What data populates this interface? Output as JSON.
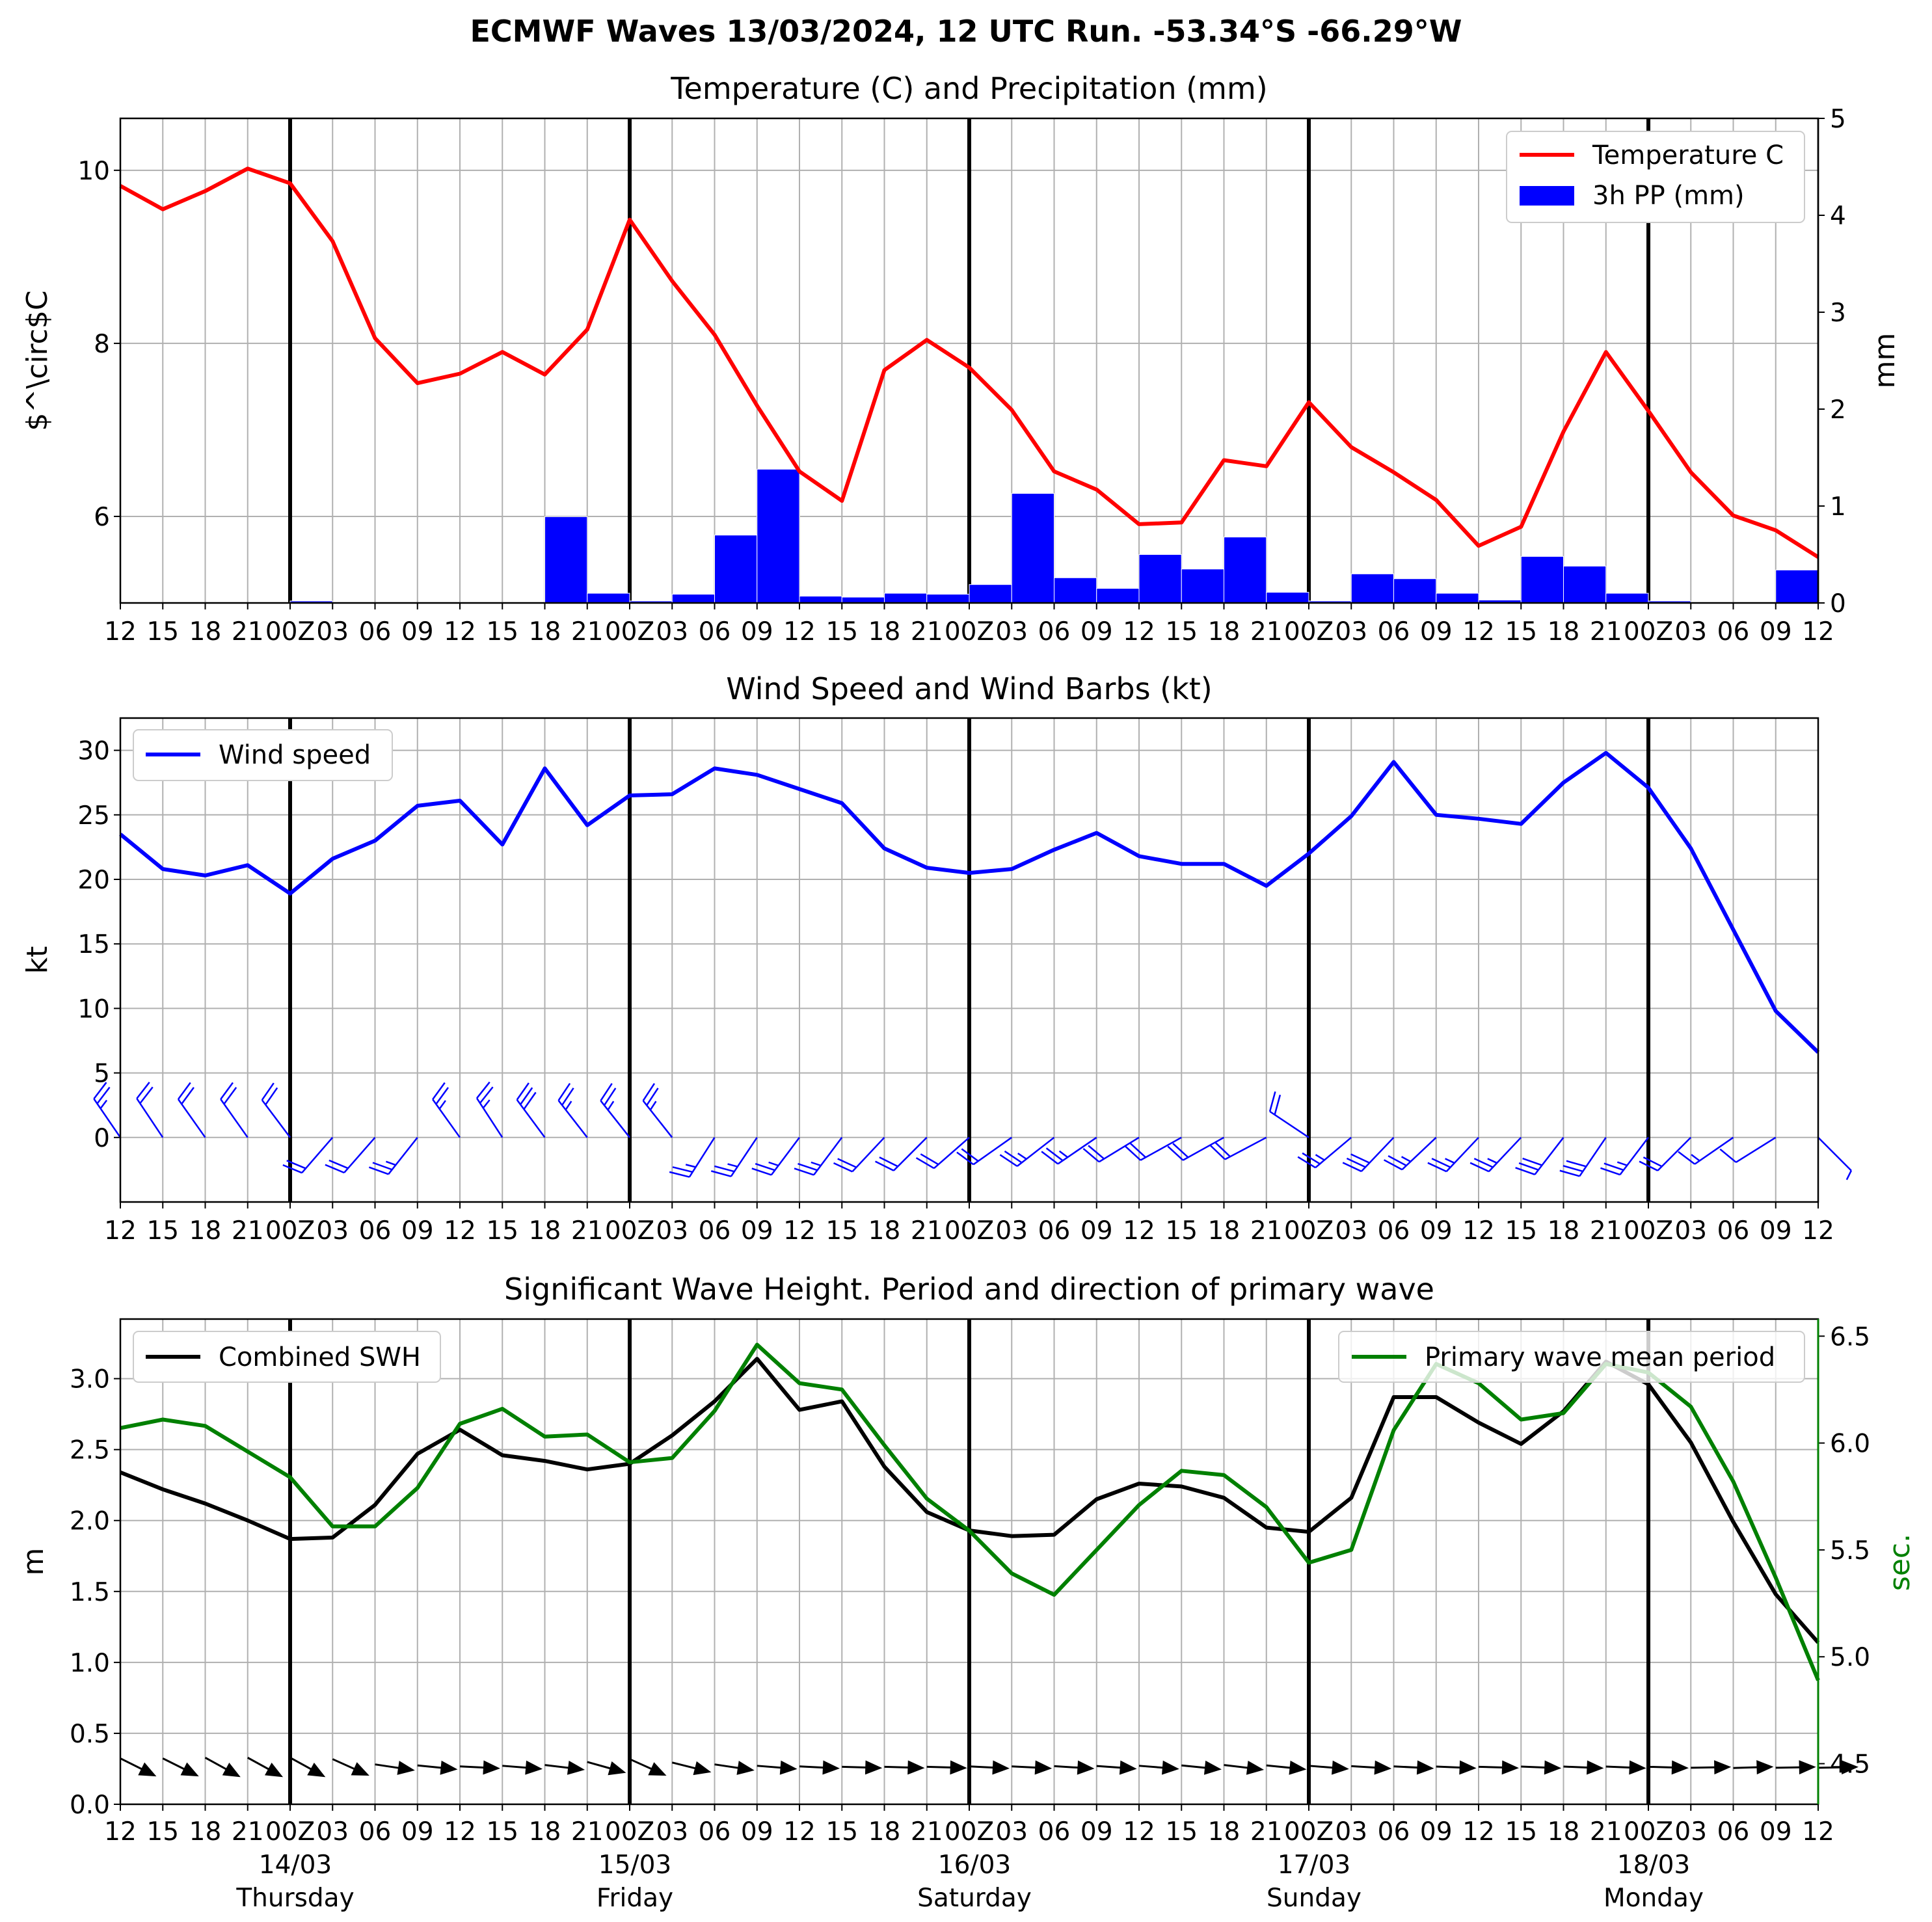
{
  "figure_title": "ECMWF Waves 13/03/2024, 12 UTC Run. -53.34°S -66.29°W",
  "x_tick_labels": [
    "12",
    "15",
    "18",
    "21",
    "00Z",
    "03",
    "06",
    "09",
    "12",
    "15",
    "18",
    "21",
    "00Z",
    "03",
    "06",
    "09",
    "12",
    "15",
    "18",
    "21",
    "00Z",
    "03",
    "06",
    "09",
    "12",
    "15",
    "18",
    "21",
    "00Z",
    "03",
    "06",
    "09",
    "12",
    "15",
    "18",
    "21",
    "00Z",
    "03",
    "06",
    "09",
    "12"
  ],
  "day_labels": [
    {
      "date": "14/03",
      "weekday": "Thursday"
    },
    {
      "date": "15/03",
      "weekday": "Friday"
    },
    {
      "date": "16/03",
      "weekday": "Saturday"
    },
    {
      "date": "17/03",
      "weekday": "Sunday"
    },
    {
      "date": "18/03",
      "weekday": "Monday"
    }
  ],
  "colors": {
    "temperature": "#ff0000",
    "precipitation": "#0000ff",
    "wind": "#0000ff",
    "swh": "#000000",
    "period": "#008000"
  },
  "chart_data": [
    {
      "type": "line",
      "title": "Temperature (C) and Precipitation (mm)",
      "ylabel": "$^\\circ$C",
      "ylabel_right": "mm",
      "ylim": [
        5.0,
        10.6
      ],
      "ylim_right": [
        0,
        5
      ],
      "yticks": [
        6,
        8,
        10
      ],
      "yticks_right": [
        0,
        1,
        2,
        3,
        4,
        5
      ],
      "grid": true,
      "legend_placement": "top-right",
      "series": [
        {
          "name": "Temperature C",
          "kind": "line",
          "axis": "left",
          "values": [
            9.82,
            9.55,
            9.76,
            10.02,
            9.85,
            9.18,
            8.06,
            7.54,
            7.65,
            7.9,
            7.64,
            8.16,
            9.43,
            8.72,
            8.1,
            7.28,
            6.52,
            6.18,
            7.69,
            8.04,
            7.72,
            7.23,
            6.52,
            6.31,
            5.91,
            5.93,
            6.65,
            6.58,
            7.32,
            6.8,
            6.51,
            6.19,
            5.66,
            5.88,
            6.98,
            7.9,
            7.22,
            6.51,
            6.01,
            5.84,
            5.53
          ]
        },
        {
          "name": "3h PP (mm)",
          "kind": "bar",
          "axis": "right",
          "values": [
            0,
            0,
            0,
            0,
            0,
            0.02,
            0,
            0,
            0,
            0,
            0,
            0.89,
            0.1,
            0.02,
            0.09,
            0.7,
            1.38,
            0.07,
            0.06,
            0.1,
            0.09,
            0.19,
            1.13,
            0.26,
            0.15,
            0.5,
            0.35,
            0.68,
            0.11,
            0.02,
            0.3,
            0.25,
            0.1,
            0.03,
            0.48,
            0.38,
            0.1,
            0.02,
            0,
            0,
            0.34
          ]
        }
      ]
    },
    {
      "type": "line",
      "title": "Wind Speed and Wind Barbs (kt)",
      "ylabel": "kt",
      "ylim": [
        -5,
        32.5
      ],
      "yticks": [
        0,
        5,
        10,
        15,
        20,
        25,
        30
      ],
      "grid": true,
      "legend_placement": "top-left",
      "series": [
        {
          "name": "Wind speed",
          "values": [
            23.5,
            20.8,
            20.3,
            21.1,
            18.9,
            21.6,
            23.0,
            25.7,
            26.1,
            22.7,
            28.6,
            24.2,
            26.5,
            26.6,
            28.6,
            28.1,
            27.0,
            25.9,
            22.4,
            20.9,
            20.5,
            20.8,
            22.3,
            23.6,
            21.8,
            21.2,
            21.2,
            19.5,
            22.0,
            24.9,
            29.1,
            25.0,
            24.7,
            24.3,
            27.5,
            29.8,
            27.1,
            22.4,
            16.1,
            9.8,
            6.6
          ]
        }
      ],
      "barbs": {
        "u": [
          -13,
          -12,
          -12,
          -12,
          -12,
          -13,
          -14,
          -15,
          -15,
          -13,
          -17,
          -14,
          -15,
          -15,
          -14,
          -14,
          -15,
          -15,
          -15,
          -15,
          -16,
          -17,
          -18,
          -19,
          -18,
          -18,
          -18,
          -17,
          -18,
          -19,
          -20,
          -18,
          -17,
          -17,
          -17,
          -17,
          -16,
          -15,
          -13,
          -8,
          5
        ],
        "v": [
          19,
          18,
          17,
          17,
          16,
          -15,
          -16,
          -19,
          21,
          20,
          23,
          18,
          19,
          19,
          -22,
          -21,
          -20,
          -20,
          -16,
          -15,
          -14,
          -12,
          -14,
          -13,
          -11,
          -10,
          -10,
          -9,
          12,
          -16,
          -21,
          -17,
          -18,
          -18,
          -22,
          -25,
          -21,
          -15,
          -9,
          -5,
          -5
        ]
      }
    },
    {
      "type": "line",
      "title": "Significant Wave Height. Period and direction of primary wave",
      "ylabel": "m",
      "ylabel_right": "sec.",
      "ylim": [
        0,
        3.42
      ],
      "ylim_right": [
        4.31,
        6.58
      ],
      "yticks": [
        0.0,
        0.5,
        1.0,
        1.5,
        2.0,
        2.5,
        3.0
      ],
      "yticks_right": [
        4.5,
        5.0,
        5.5,
        6.0,
        6.5
      ],
      "grid": true,
      "series": [
        {
          "name": "Combined SWH",
          "axis": "left",
          "legend_placement": "top-left",
          "values": [
            2.34,
            2.22,
            2.12,
            2.0,
            1.87,
            1.88,
            2.11,
            2.47,
            2.64,
            2.46,
            2.42,
            2.36,
            2.4,
            2.6,
            2.84,
            3.14,
            2.78,
            2.84,
            2.38,
            2.06,
            1.93,
            1.89,
            1.9,
            2.15,
            2.26,
            2.24,
            2.16,
            1.95,
            1.92,
            2.16,
            2.87,
            2.87,
            2.69,
            2.54,
            2.77,
            3.12,
            2.96,
            2.55,
            1.99,
            1.48,
            1.14
          ]
        },
        {
          "name": "Primary wave mean period",
          "axis": "right",
          "legend_placement": "top-right",
          "values": [
            6.07,
            6.11,
            6.08,
            5.96,
            5.84,
            5.61,
            5.61,
            5.79,
            6.09,
            6.16,
            6.03,
            6.04,
            5.91,
            5.93,
            6.15,
            6.46,
            6.28,
            6.25,
            5.99,
            5.74,
            5.59,
            5.39,
            5.29,
            5.5,
            5.71,
            5.87,
            5.85,
            5.7,
            5.44,
            5.5,
            6.06,
            6.37,
            6.28,
            6.11,
            6.14,
            6.37,
            6.33,
            6.17,
            5.82,
            5.37,
            4.89
          ]
        }
      ],
      "wave_direction_arrows": {
        "u": [
          1,
          1,
          1,
          1,
          1,
          1,
          1,
          1,
          1,
          1,
          1,
          1,
          1,
          1,
          1,
          1,
          1,
          1,
          1,
          1,
          1,
          1,
          1,
          1,
          1,
          1,
          1,
          1,
          1,
          1,
          1,
          1,
          1,
          1,
          1,
          1,
          1,
          1,
          1,
          1,
          1
        ],
        "v": [
          -0.5,
          -0.5,
          -0.55,
          -0.55,
          -0.55,
          -0.45,
          -0.15,
          -0.1,
          -0.05,
          -0.08,
          -0.12,
          -0.28,
          -0.45,
          -0.25,
          -0.15,
          -0.08,
          -0.05,
          -0.03,
          -0.03,
          -0.03,
          -0.05,
          -0.05,
          -0.06,
          -0.07,
          -0.08,
          -0.1,
          -0.12,
          -0.1,
          -0.08,
          -0.06,
          -0.05,
          -0.04,
          -0.03,
          -0.04,
          -0.04,
          -0.04,
          -0.03,
          0.02,
          0.03,
          0.02,
          0.02
        ]
      }
    }
  ]
}
